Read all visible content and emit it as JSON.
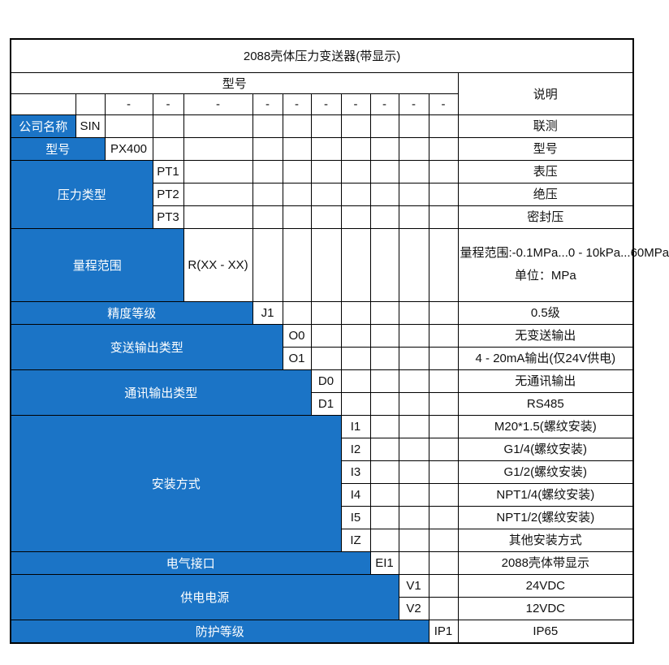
{
  "title": "2088壳体压力变送器(带显示)",
  "header": {
    "model_label": "型号",
    "desc_label": "说明",
    "dash_row": [
      "",
      "",
      "-",
      "-",
      "-",
      "-",
      "-",
      "-",
      "-",
      "-",
      "-",
      "-"
    ]
  },
  "colors": {
    "accent_blue": "#1b74c6",
    "border": "#000000"
  },
  "sections": [
    {
      "label": "公司名称",
      "label_span": 1,
      "code_col": 2,
      "rows": [
        {
          "code": "SIN",
          "desc": "联测"
        }
      ]
    },
    {
      "label": "型号",
      "label_span": 2,
      "code_col": 3,
      "rows": [
        {
          "code": "PX400",
          "desc": "型号"
        }
      ]
    },
    {
      "label": "压力类型",
      "label_span": 3,
      "code_col": 4,
      "rows": [
        {
          "code": "PT1",
          "desc": "表压"
        },
        {
          "code": "PT2",
          "desc": "绝压"
        },
        {
          "code": "PT3",
          "desc": "密封压"
        }
      ]
    },
    {
      "label": "量程范围",
      "label_span": 4,
      "code_col": 5,
      "rows": [
        {
          "code": "R(XX - XX)",
          "desc": [
            "量程范围:-0.1MPa...0 - 10kPa...60MPa",
            "单位：MPa"
          ],
          "tall": true
        }
      ]
    },
    {
      "label": "精度等级",
      "label_span": 5,
      "code_col": 6,
      "rows": [
        {
          "code": "J1",
          "desc": "0.5级"
        }
      ]
    },
    {
      "label": "变送输出类型",
      "label_span": 6,
      "code_col": 7,
      "rows": [
        {
          "code": "O0",
          "desc": "无变送输出"
        },
        {
          "code": "O1",
          "desc": "4 - 20mA输出(仅24V供电)"
        }
      ]
    },
    {
      "label": "通讯输出类型",
      "label_span": 7,
      "code_col": 8,
      "rows": [
        {
          "code": "D0",
          "desc": "无通讯输出"
        },
        {
          "code": "D1",
          "desc": "RS485"
        }
      ]
    },
    {
      "label": "安装方式",
      "label_span": 8,
      "code_col": 9,
      "rows": [
        {
          "code": "I1",
          "desc": "M20*1.5(螺纹安装)"
        },
        {
          "code": "I2",
          "desc": "G1/4(螺纹安装)"
        },
        {
          "code": "I3",
          "desc": "G1/2(螺纹安装)"
        },
        {
          "code": "I4",
          "desc": "NPT1/4(螺纹安装)"
        },
        {
          "code": "I5",
          "desc": "NPT1/2(螺纹安装)"
        },
        {
          "code": "IZ",
          "desc": "其他安装方式"
        }
      ]
    },
    {
      "label": "电气接口",
      "label_span": 9,
      "code_col": 10,
      "rows": [
        {
          "code": "EI1",
          "desc": "2088壳体带显示"
        }
      ]
    },
    {
      "label": "供电电源",
      "label_span": 10,
      "code_col": 11,
      "rows": [
        {
          "code": "V1",
          "desc": "24VDC"
        },
        {
          "code": "V2",
          "desc": "12VDC"
        }
      ]
    },
    {
      "label": "防护等级",
      "label_span": 11,
      "code_col": 12,
      "rows": [
        {
          "code": "IP1",
          "desc": "IP65"
        }
      ]
    }
  ]
}
